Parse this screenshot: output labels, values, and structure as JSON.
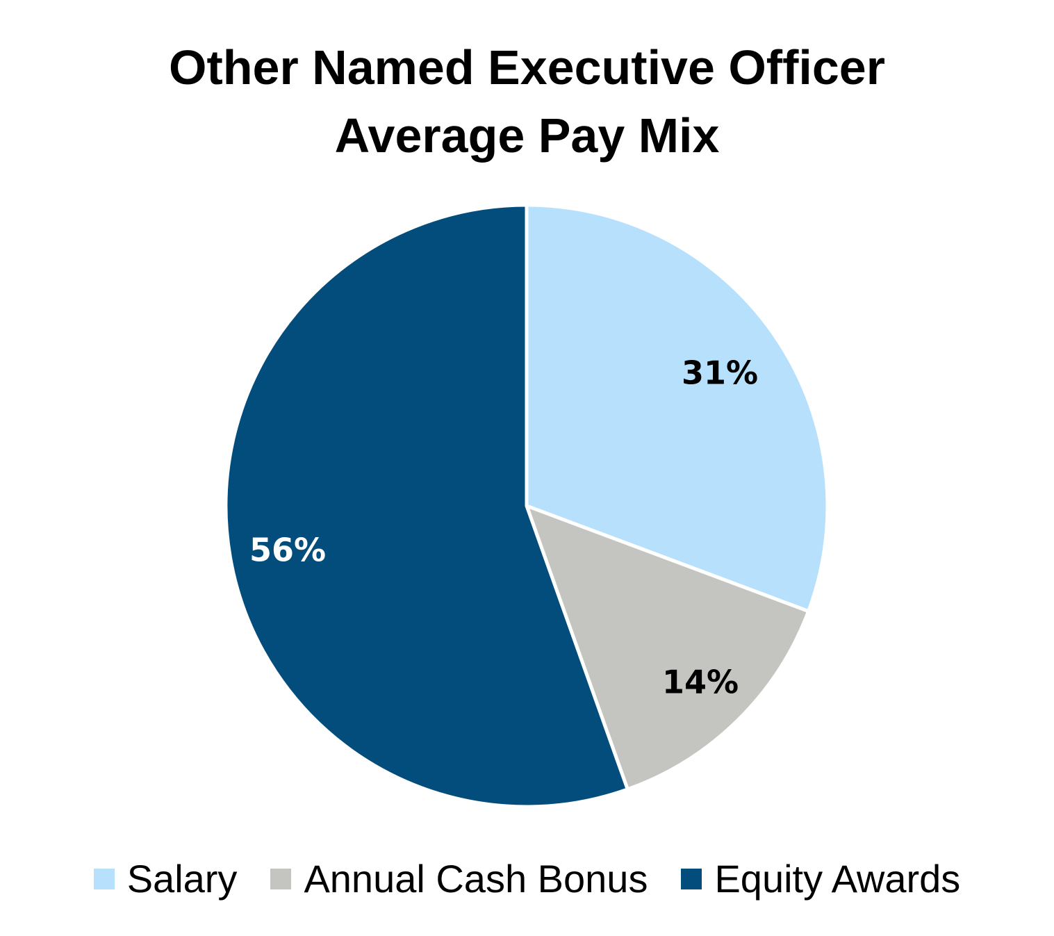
{
  "chart_data": {
    "type": "pie",
    "title": "Other Named Executive Officer Average Pay Mix",
    "title_lines": [
      "Other Named Executive Officer",
      "Average Pay Mix"
    ],
    "categories": [
      "Salary",
      "Annual Cash Bonus",
      "Equity Awards"
    ],
    "values": [
      31,
      14,
      56
    ],
    "labels": [
      "31%",
      "14%",
      "56%"
    ],
    "colors": [
      "#b6e0fc",
      "#c4c4c0",
      "#024d7c"
    ],
    "label_colors": [
      "#000000",
      "#000000",
      "#ffffff"
    ],
    "start_angle": "12 o'clock, clockwise",
    "legend_position": "bottom"
  }
}
